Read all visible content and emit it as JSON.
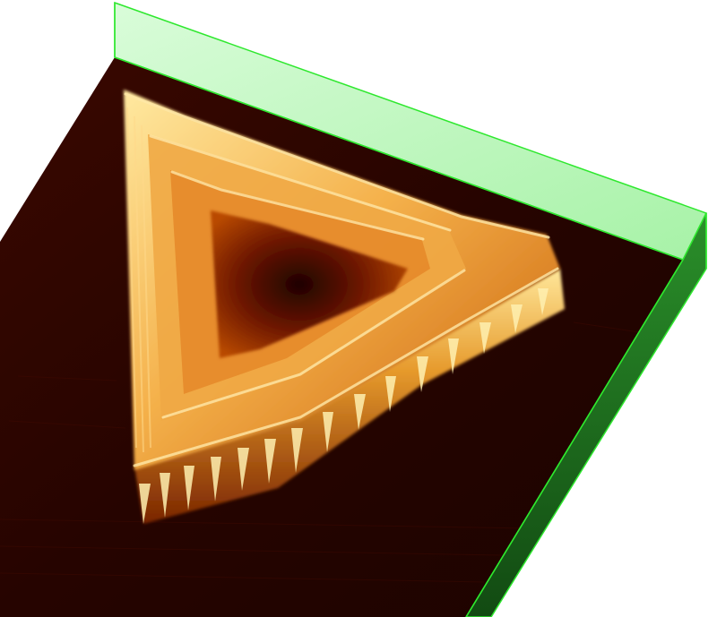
{
  "image": {
    "subject": "afm-3d-surface-render",
    "colors": {
      "background": "#ffffff",
      "substrate_dark": "#1c0300",
      "substrate_mid": "#3a0800",
      "feature_low": "#7a1c00",
      "feature_mid": "#d2700e",
      "feature_high": "#ffd070",
      "feature_peak": "#fff2b0",
      "bounding_box_fill": "#b4f7b4",
      "bounding_box_side": "#1d7a1d",
      "bounding_box_edge": "#2ee82e"
    }
  }
}
